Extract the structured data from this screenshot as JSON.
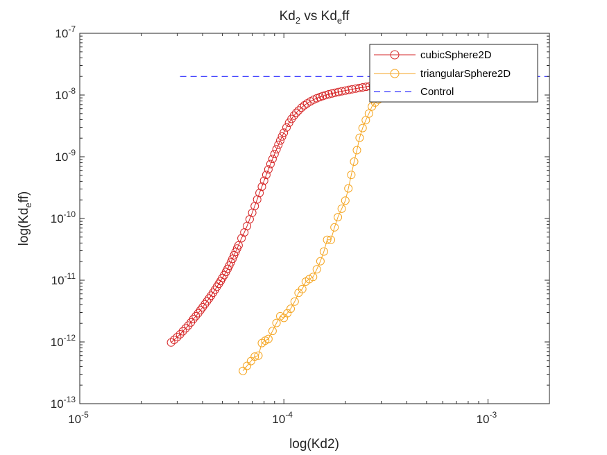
{
  "chart_data": {
    "type": "line",
    "title": {
      "main": "Kd",
      "sub1": "2",
      "mid": " vs Kd",
      "sub2": "e",
      "tail": "ff"
    },
    "xlabel": "log(Kd2)",
    "ylabel": {
      "pre": "log(Kd",
      "sub": "e",
      "post": "ff)"
    },
    "xscale": "log",
    "yscale": "log",
    "xlim": [
      1e-05,
      0.002
    ],
    "ylim": [
      1e-13,
      1e-07
    ],
    "grid": false,
    "legend_position": "top-right",
    "xticks": [
      {
        "value": 1e-05,
        "base": "10",
        "exp": "-5"
      },
      {
        "value": 0.0001,
        "base": "10",
        "exp": "-4"
      },
      {
        "value": 0.001,
        "base": "10",
        "exp": "-3"
      }
    ],
    "yticks": [
      {
        "value": 1e-13,
        "base": "10",
        "exp": "-13"
      },
      {
        "value": 1e-12,
        "base": "10",
        "exp": "-12"
      },
      {
        "value": 1e-11,
        "base": "10",
        "exp": "-11"
      },
      {
        "value": 1e-10,
        "base": "10",
        "exp": "-10"
      },
      {
        "value": 1e-09,
        "base": "10",
        "exp": "-9"
      },
      {
        "value": 1e-08,
        "base": "10",
        "exp": "-8"
      },
      {
        "value": 1e-07,
        "base": "10",
        "exp": "-7"
      }
    ],
    "series": [
      {
        "name": "cubicSphere2D",
        "color": "#d62728",
        "marker": "circle",
        "linestyle": "solid",
        "x": [
          2.8e-05,
          2.9e-05,
          3e-05,
          3.1e-05,
          3.2e-05,
          3.3e-05,
          3.4e-05,
          3.5e-05,
          3.6e-05,
          3.7e-05,
          3.8e-05,
          3.9e-05,
          4e-05,
          4.1e-05,
          4.2e-05,
          4.3e-05,
          4.4e-05,
          4.5e-05,
          4.6e-05,
          4.7e-05,
          4.8e-05,
          4.9e-05,
          5e-05,
          5.1e-05,
          5.2e-05,
          5.3e-05,
          5.4e-05,
          5.5e-05,
          5.6e-05,
          5.7e-05,
          5.8e-05,
          5.9e-05,
          6e-05,
          6.2e-05,
          6.4e-05,
          6.6e-05,
          6.8e-05,
          7e-05,
          7.2e-05,
          7.4e-05,
          7.6e-05,
          7.8e-05,
          8e-05,
          8.2e-05,
          8.4e-05,
          8.6e-05,
          8.8e-05,
          9e-05,
          9.2e-05,
          9.4e-05,
          9.6e-05,
          9.8e-05,
          0.0001,
          0.000103,
          0.000106,
          0.000109,
          0.000112,
          0.000115,
          0.000118,
          0.000122,
          0.000126,
          0.00013,
          0.000135,
          0.00014,
          0.000145,
          0.00015,
          0.000155,
          0.00016,
          0.000166,
          0.000172,
          0.000178,
          0.000185,
          0.000192,
          0.0002,
          0.000208,
          0.000216,
          0.000225,
          0.000234,
          0.000243,
          0.000253,
          0.000263,
          0.000273,
          0.000284,
          0.000295,
          0.000305
        ],
        "y": [
          9.8e-13,
          1.08e-12,
          1.2e-12,
          1.33e-12,
          1.49e-12,
          1.66e-12,
          1.84e-12,
          2.07e-12,
          2.35e-12,
          2.61e-12,
          2.92e-12,
          3.26e-12,
          3.65e-12,
          4.09e-12,
          4.56e-12,
          5.06e-12,
          5.61e-12,
          6.27e-12,
          7e-12,
          7.84e-12,
          8.73e-12,
          9.73e-12,
          1.09e-11,
          1.21e-11,
          1.36e-11,
          1.53e-11,
          1.72e-11,
          1.95e-11,
          2.22e-11,
          2.54e-11,
          2.87e-11,
          3.27e-11,
          3.67e-11,
          4.79e-11,
          5.95e-11,
          7.55e-11,
          9.71e-11,
          1.24e-10,
          1.59e-10,
          2.03e-10,
          2.59e-10,
          3.28e-10,
          4.1e-10,
          5.09e-10,
          6.25e-10,
          7.63e-10,
          9.24e-10,
          1.11e-09,
          1.32e-09,
          1.56e-09,
          1.83e-09,
          2.13e-09,
          2.46e-09,
          2.99e-09,
          3.55e-09,
          4.1e-09,
          4.63e-09,
          5.15e-09,
          5.62e-09,
          6.24e-09,
          6.8e-09,
          7.32e-09,
          7.91e-09,
          8.42e-09,
          8.86e-09,
          9.26e-09,
          9.61e-09,
          9.93e-09,
          1.03e-08,
          1.06e-08,
          1.09e-08,
          1.12e-08,
          1.15e-08,
          1.18e-08,
          1.21e-08,
          1.24e-08,
          1.27e-08,
          1.3e-08,
          1.33e-08,
          1.36e-08,
          1.39e-08,
          1.41e-08,
          1.44e-08,
          1.47e-08,
          1.5e-08
        ]
      },
      {
        "name": "triangularSphere2D",
        "color": "#f5a623",
        "marker": "circle",
        "linestyle": "solid",
        "x": [
          6.3e-05,
          6.6e-05,
          6.9e-05,
          7.2e-05,
          7.5e-05,
          7.8e-05,
          8.1e-05,
          8.4e-05,
          8.8e-05,
          9.2e-05,
          9.6e-05,
          0.0001,
          0.000104,
          0.000108,
          0.000113,
          0.000118,
          0.000123,
          0.000128,
          0.000133,
          0.000139,
          0.000145,
          0.000151,
          0.000157,
          0.000163,
          0.00017,
          0.000177,
          0.000184,
          0.000192,
          0.0002,
          0.000207,
          0.000214,
          0.000221,
          0.000228,
          0.000235,
          0.000243,
          0.000252,
          0.000261,
          0.00027,
          0.00028,
          0.00029,
          0.0003
        ],
        "y": [
          3.4e-13,
          4.1e-13,
          4.9e-13,
          5.8e-13,
          6e-13,
          9.6e-13,
          1.05e-12,
          1.12e-12,
          1.51e-12,
          2.03e-12,
          2.61e-12,
          2.45e-12,
          2.92e-12,
          3.45e-12,
          4.51e-12,
          6.24e-12,
          7.18e-12,
          9.5e-12,
          1.04e-11,
          1.13e-11,
          1.5e-11,
          2.03e-11,
          2.92e-11,
          4.51e-11,
          4.51e-11,
          7.18e-11,
          1.05e-10,
          1.44e-10,
          1.95e-10,
          3.07e-10,
          5.09e-10,
          8.34e-10,
          1.28e-09,
          2.03e-09,
          2.92e-09,
          3.91e-09,
          5.01e-09,
          6.51e-09,
          7.55e-09,
          8.42e-09,
          9.26e-09
        ]
      },
      {
        "name": "Control",
        "color": "#0000ff",
        "marker": "none",
        "linestyle": "dashed",
        "x": [
          3.1e-05,
          0.002
        ],
        "y": [
          2e-08,
          2e-08
        ]
      }
    ]
  }
}
